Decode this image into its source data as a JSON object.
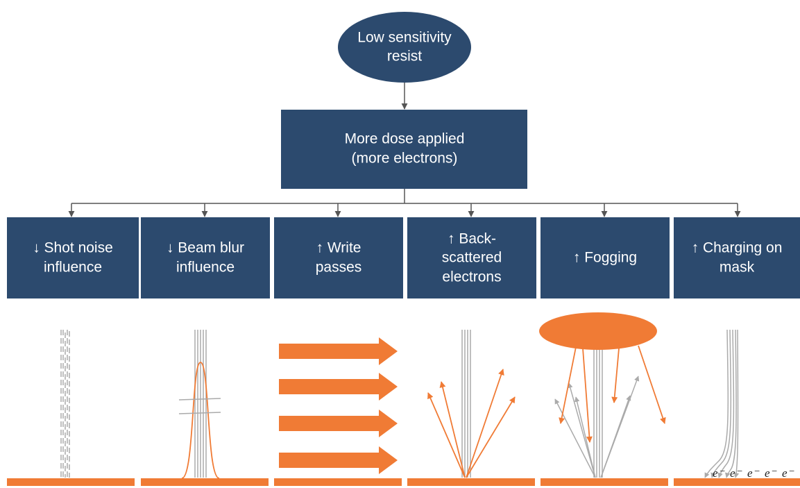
{
  "top_node": {
    "lines": [
      "Low sensitivity",
      "resist"
    ]
  },
  "middle_node": {
    "lines": [
      "More dose applied",
      "(more electrons)"
    ]
  },
  "effects": [
    {
      "lines": [
        "↓ Shot noise",
        "influence"
      ]
    },
    {
      "lines": [
        "↓ Beam blur",
        "influence"
      ]
    },
    {
      "lines": [
        "↑ Write",
        "passes"
      ]
    },
    {
      "lines": [
        "↑ Back-",
        "scattered",
        "electrons"
      ]
    },
    {
      "lines": [
        "↑ Fogging"
      ]
    },
    {
      "lines": [
        "↑ Charging on",
        "mask"
      ]
    }
  ],
  "electron_labels": [
    "e⁻",
    "e⁻",
    "e⁻",
    "e⁻",
    "e⁻"
  ]
}
